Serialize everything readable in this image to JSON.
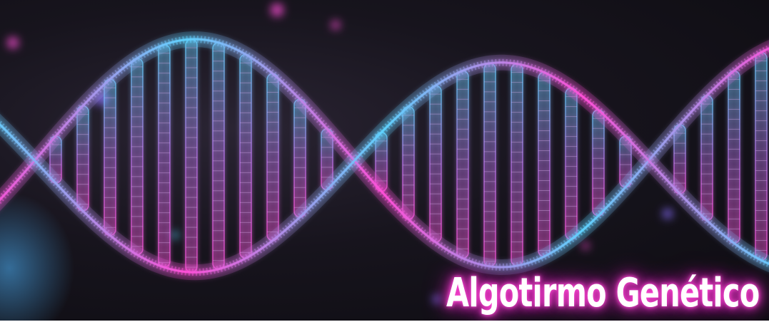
{
  "banner": {
    "title": "Algotirmo Genético",
    "image_subject": "dna-double-helix",
    "colors": {
      "background": "#111017",
      "helix_cyan": "#5fd3ff",
      "helix_magenta": "#ff4fd8",
      "rung_violet": "#c77dff",
      "title_glow": "#ff3ccf"
    }
  }
}
